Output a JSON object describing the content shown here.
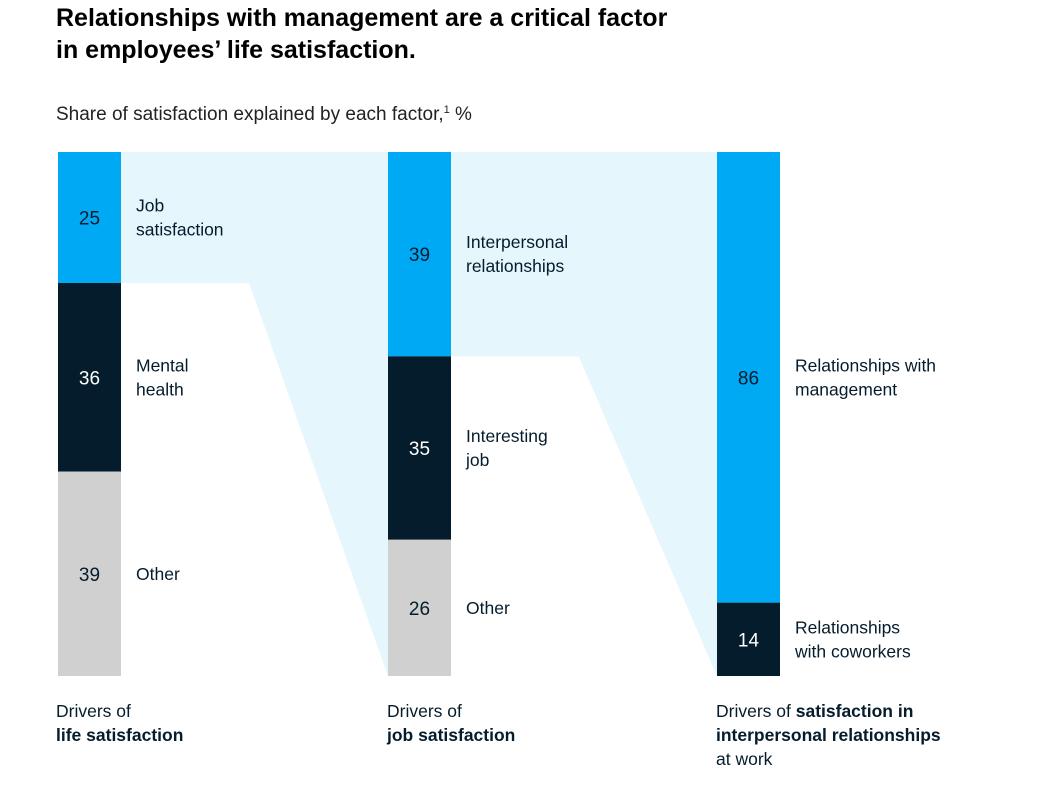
{
  "title_lines": [
    "Relationships with management are a critical factor",
    "in employees’ life satisfaction."
  ],
  "subtitle": "Share of satisfaction explained by each factor,",
  "subtitle_footnote": "1",
  "subtitle_unit": " %",
  "colors": {
    "accent_blue": "#00a9f4",
    "navy": "#051c2c",
    "gray": "#d0d0d0",
    "flow": "#e5f6fd"
  },
  "chart_data": {
    "type": "bar",
    "subtype": "stacked-100-percent-with-flow-bands",
    "unit": "%",
    "columns": [
      {
        "caption_prefix": "Drivers of",
        "caption_bold": "life satisfaction",
        "caption_suffix": "",
        "segments": [
          {
            "value": 25,
            "label": [
              "Job",
              "satisfaction"
            ],
            "color": "#00a9f4"
          },
          {
            "value": 36,
            "label": [
              "Mental",
              "health"
            ],
            "color": "#051c2c"
          },
          {
            "value": 39,
            "label": [
              "Other"
            ],
            "color": "#d0d0d0"
          }
        ]
      },
      {
        "caption_prefix": "Drivers of",
        "caption_bold": "job satisfaction",
        "caption_suffix": "",
        "segments": [
          {
            "value": 39,
            "label": [
              "Interpersonal",
              "relationships"
            ],
            "color": "#00a9f4"
          },
          {
            "value": 35,
            "label": [
              "Interesting",
              "job"
            ],
            "color": "#051c2c"
          },
          {
            "value": 26,
            "label": [
              "Other"
            ],
            "color": "#d0d0d0"
          }
        ]
      },
      {
        "caption_prefix": "Drivers of ",
        "caption_bold": "satisfaction in interpersonal relationships",
        "caption_suffix": "at work",
        "segments": [
          {
            "value": 86,
            "label": [
              "Relationships with",
              "management"
            ],
            "color": "#00a9f4"
          },
          {
            "value": 14,
            "label": [
              "Relationships",
              "with coworkers"
            ],
            "color": "#051c2c"
          }
        ]
      }
    ],
    "flows": [
      {
        "from_column": 0,
        "from_segment": 0,
        "to_column": 1
      },
      {
        "from_column": 1,
        "from_segment": 0,
        "to_column": 2
      }
    ]
  }
}
